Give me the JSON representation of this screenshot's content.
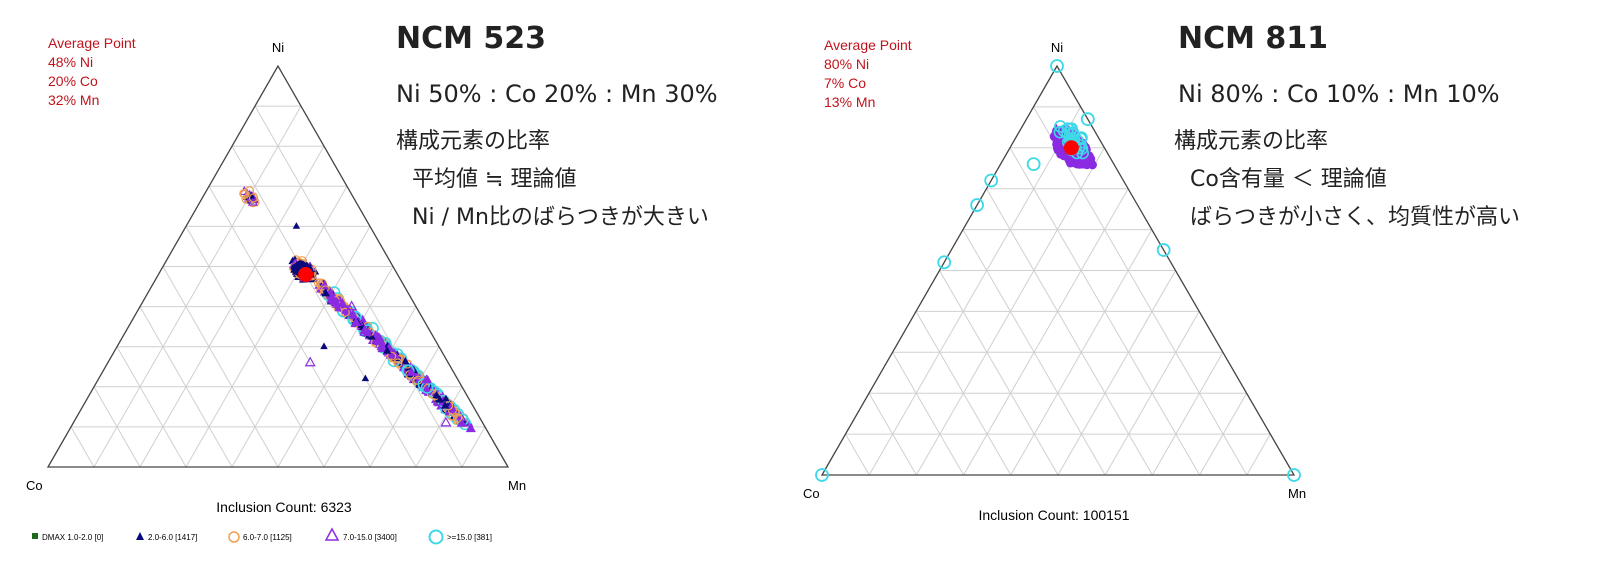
{
  "colors": {
    "frame": "#444444",
    "grid": "#d0d0d0",
    "average_text": "#c0141c",
    "average_point": "#ff0000",
    "dmax_1_2": "#1a6b1a",
    "dmax_2_6": "#0a0a7a",
    "dmax_6_7": "#f0a050",
    "dmax_7_15": "#8a2be2",
    "dmax_15_plus": "#3fd8e8"
  },
  "chart_data": [
    {
      "type": "scatter",
      "subtype": "ternary",
      "vertices": {
        "top": "Ni",
        "left": "Co",
        "right": "Mn"
      },
      "heading": "NCM 523",
      "ratio_text": "Ni 50% : Co 20% : Mn 30%",
      "notes": [
        "構成元素の比率",
        "平均値 ≒ 理論値",
        "Ni / Mn比のばらつきが大きい"
      ],
      "average": {
        "title": "Average Point",
        "lines": [
          "48% Ni",
          "20% Co",
          "32% Mn"
        ],
        "Ni": 48,
        "Co": 20,
        "Mn": 32
      },
      "inclusion_count_label": "Inclusion Count: 6323",
      "inclusion_count": 6323,
      "grid": true,
      "legend_placement": "bottom",
      "legend": [
        {
          "label": "DMAX 1.0-2.0 [0]",
          "marker": "square",
          "color": "#1a6b1a"
        },
        {
          "label": "2.0-6.0 [1417]",
          "marker": "filled-triangle",
          "color": "#0a0a7a"
        },
        {
          "label": "6.0-7.0 [1125]",
          "marker": "open-circle",
          "color": "#f0a050"
        },
        {
          "label": "7.0-15.0 [3400]",
          "marker": "open-triangle",
          "color": "#8a2be2"
        },
        {
          "label": ">=15.0 [381]",
          "marker": "open-circle",
          "color": "#3fd8e8"
        }
      ],
      "clusters": [
        {
          "description": "main cluster",
          "Ni": [
            46,
            52
          ],
          "Co": [
            17,
            23
          ],
          "Mn": [
            28,
            35
          ]
        },
        {
          "description": "tail toward Mn",
          "from": {
            "Ni": 45,
            "Co": 18,
            "Mn": 37
          },
          "to": {
            "Ni": 11,
            "Co": 4,
            "Mn": 85
          }
        },
        {
          "description": "upper stray group",
          "Ni": [
            64,
            70
          ],
          "Co": [
            20,
            25
          ],
          "Mn": [
            8,
            13
          ]
        }
      ]
    },
    {
      "type": "scatter",
      "subtype": "ternary",
      "vertices": {
        "top": "Ni",
        "left": "Co",
        "right": "Mn"
      },
      "heading": "NCM 811",
      "ratio_text": "Ni 80% : Co 10% : Mn 10%",
      "notes": [
        "構成元素の比率",
        "Co含有量 ＜ 理論値",
        "ばらつきが小さく、均質性が高い"
      ],
      "average": {
        "title": "Average Point",
        "lines": [
          "80% Ni",
          "7% Co",
          "13% Mn"
        ],
        "Ni": 80,
        "Co": 7,
        "Mn": 13
      },
      "inclusion_count_label": "Inclusion Count: 100151",
      "inclusion_count": 100151,
      "grid": true,
      "clusters": [
        {
          "description": "dense cluster",
          "Ni": [
            73,
            87
          ],
          "Co": [
            2,
            13
          ],
          "Mn": [
            6,
            20
          ]
        }
      ],
      "outliers": [
        {
          "Ni": 100,
          "Co": 0,
          "Mn": 0
        },
        {
          "Ni": 72,
          "Co": 28,
          "Mn": 0
        },
        {
          "Ni": 66,
          "Co": 34,
          "Mn": 0
        },
        {
          "Ni": 52,
          "Co": 48,
          "Mn": 0
        },
        {
          "Ni": 55,
          "Co": 0,
          "Mn": 45
        },
        {
          "Ni": 0,
          "Co": 100,
          "Mn": 0
        },
        {
          "Ni": 0,
          "Co": 0,
          "Mn": 100
        },
        {
          "Ni": 76,
          "Co": 17,
          "Mn": 7
        },
        {
          "Ni": 87,
          "Co": 0,
          "Mn": 13
        }
      ]
    }
  ]
}
